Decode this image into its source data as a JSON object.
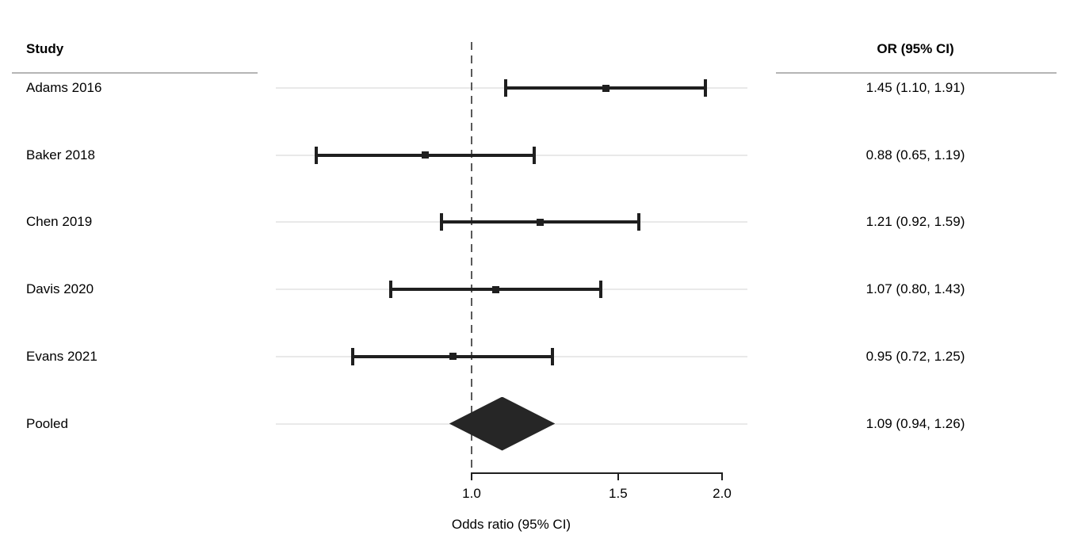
{
  "header": {
    "study_column": "Study",
    "or_column": "OR (95% CI)"
  },
  "chart_data": {
    "type": "forest",
    "x_scale": "log",
    "xlabel": "Odds ratio (95% CI)",
    "axis": {
      "range": [
        1.0,
        2.0
      ],
      "ticks": [
        1.0,
        1.5,
        2.0
      ],
      "tick_labels": [
        "1.0",
        "1.5",
        "2.0"
      ],
      "reference_line": 1.0,
      "grid": "row-guidelines"
    },
    "studies": [
      {
        "label": "Adams 2016",
        "or": 1.45,
        "ci_low": 1.1,
        "ci_high": 1.91,
        "display": "1.45 (1.10, 1.91)"
      },
      {
        "label": "Baker 2018",
        "or": 0.88,
        "ci_low": 0.65,
        "ci_high": 1.19,
        "display": "0.88 (0.65, 1.19)"
      },
      {
        "label": "Chen 2019",
        "or": 1.21,
        "ci_low": 0.92,
        "ci_high": 1.59,
        "display": "1.21 (0.92, 1.59)"
      },
      {
        "label": "Davis 2020",
        "or": 1.07,
        "ci_low": 0.8,
        "ci_high": 1.43,
        "display": "1.07 (0.80, 1.43)"
      },
      {
        "label": "Evans 2021",
        "or": 0.95,
        "ci_low": 0.72,
        "ci_high": 1.25,
        "display": "0.95 (0.72, 1.25)"
      }
    ],
    "pooled": {
      "label": "Pooled",
      "or": 1.09,
      "ci_low": 0.94,
      "ci_high": 1.26,
      "display": "1.09 (0.94, 1.26)"
    }
  },
  "colors": {
    "background": "#ffffff",
    "text": "#000000",
    "ci_bar": "#1f1f1f",
    "pooled_diamond": "#262626",
    "reference_line": "#595959",
    "row_guideline": "#e9e9e9",
    "header_underline": "#b5b5b5",
    "axis": "#1f1f1f"
  }
}
